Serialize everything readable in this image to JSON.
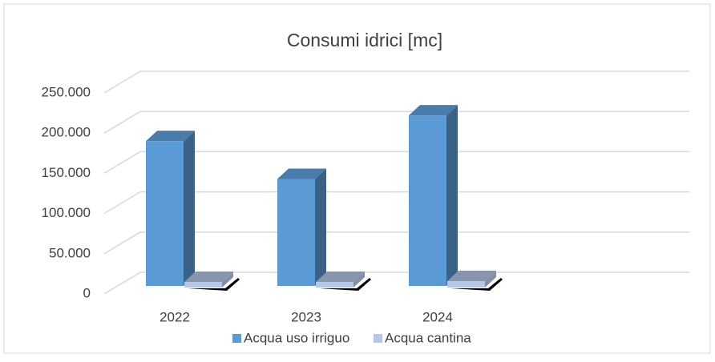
{
  "chart_data": {
    "type": "bar3d",
    "title": "Consumi idrici [mc]",
    "categories": [
      "2022",
      "2023",
      "2024"
    ],
    "series": [
      {
        "name": "Acqua uso irriguo",
        "color": "#5b9bd5",
        "values": [
          180000,
          133000,
          212000
        ]
      },
      {
        "name": "Acqua cantina",
        "color": "#b4c7e7",
        "values": [
          7000,
          7000,
          8000
        ]
      }
    ],
    "ylim": [
      0,
      250000
    ],
    "yticks": [
      0,
      {
        "value": 50000,
        "label": "50.000"
      },
      {
        "value": 100000,
        "label": "100.000"
      },
      {
        "value": 150000,
        "label": "150.000"
      },
      {
        "value": 200000,
        "label": "200.000"
      },
      {
        "value": 250000,
        "label": "250.000"
      }
    ],
    "grid": true,
    "legend": "bottom"
  }
}
